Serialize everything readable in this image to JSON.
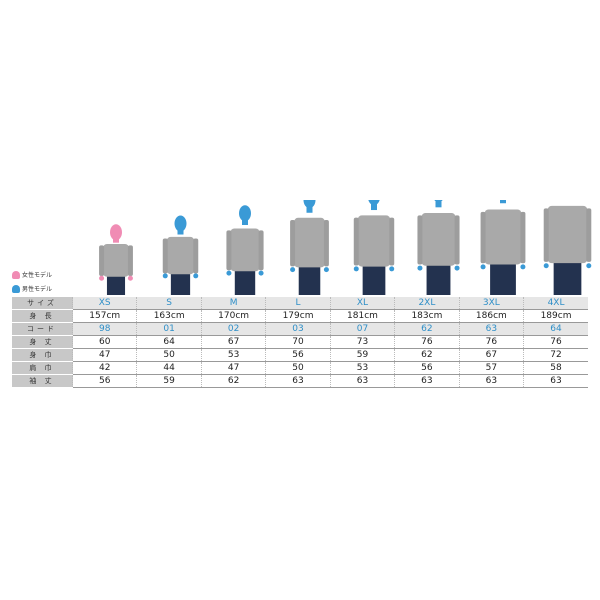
{
  "legend": {
    "female": "女性モデル",
    "male": "男性モデル",
    "female_color": "#f08cb4",
    "male_color": "#3a9ad6"
  },
  "sizes": [
    "XS",
    "S",
    "M",
    "L",
    "XL",
    "2XL",
    "3XL",
    "4XL"
  ],
  "models": [
    "female",
    "male",
    "male",
    "male",
    "male",
    "male",
    "male",
    "male"
  ],
  "rows": [
    {
      "label": "サイズ",
      "key": "size"
    },
    {
      "label": "身 長",
      "values": [
        "157cm",
        "163cm",
        "170cm",
        "179cm",
        "181cm",
        "183cm",
        "186cm",
        "189cm"
      ]
    },
    {
      "label": "コード",
      "values": [
        "98",
        "01",
        "02",
        "03",
        "07",
        "62",
        "63",
        "64"
      ]
    },
    {
      "label": "身 丈",
      "values": [
        "60",
        "64",
        "67",
        "70",
        "73",
        "76",
        "76",
        "76"
      ]
    },
    {
      "label": "身 巾",
      "values": [
        "47",
        "50",
        "53",
        "56",
        "59",
        "62",
        "67",
        "72"
      ]
    },
    {
      "label": "肩 巾",
      "values": [
        "42",
        "44",
        "47",
        "50",
        "53",
        "56",
        "57",
        "58"
      ]
    },
    {
      "label": "袖 丈",
      "values": [
        "56",
        "59",
        "62",
        "63",
        "63",
        "63",
        "63",
        "63"
      ]
    }
  ]
}
